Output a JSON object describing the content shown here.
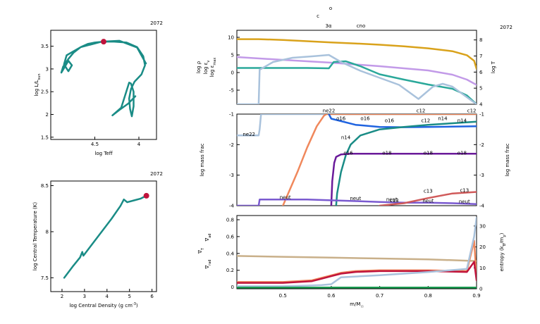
{
  "model_number": "2072",
  "colors": {
    "teal": "#1a8c86",
    "marker": "#c0143c",
    "lilac": "#c29ae8",
    "gold": "#d9a21b",
    "teal2": "#2aa89a",
    "lightblue": "#a9c2dc",
    "orange": "#f0885c",
    "blue": "#1f63e0",
    "purple": "#6a1a9a",
    "violet": "#7a5ad0",
    "red": "#d05a5a",
    "tan": "#c9b08a",
    "green": "#1a9a50"
  },
  "chart_data": [
    {
      "type": "line",
      "id": "hr",
      "title": "2072",
      "xlabel": "log Teff",
      "ylabel": "log L/L",
      "ylabel_sub": "sun",
      "xlim": [
        5.0,
        3.8
      ],
      "ylim": [
        1.45,
        3.85
      ],
      "xticks": [
        4.5,
        4
      ],
      "yticks": [
        1.5,
        2,
        2.5,
        3,
        3.5
      ],
      "x": [
        3.92,
        4.02,
        4.22,
        4.42,
        4.66,
        4.82,
        4.85,
        4.8,
        4.76,
        4.8,
        4.84,
        4.88,
        4.86,
        4.8,
        4.74,
        4.66,
        4.58,
        4.5,
        4.4,
        4.28,
        4.14,
        4.02,
        3.95,
        3.93,
        3.97,
        4.05,
        4.09,
        4.11,
        4.1,
        4.08,
        4.06,
        4.06,
        4.09,
        4.11,
        4.2,
        4.3,
        4.22,
        4.12,
        4.04
      ],
      "y": [
        3.12,
        3.47,
        3.62,
        3.6,
        3.48,
        3.3,
        3.1,
        2.95,
        3.08,
        3.18,
        3.05,
        2.92,
        3.05,
        3.22,
        3.36,
        3.48,
        3.55,
        3.58,
        3.6,
        3.6,
        3.58,
        3.48,
        3.28,
        3.08,
        2.88,
        2.72,
        2.56,
        2.35,
        2.12,
        1.96,
        2.18,
        2.5,
        2.68,
        2.7,
        2.15,
        1.98,
        2.1,
        2.24,
        2.4
      ],
      "marker": {
        "x": 4.4,
        "y": 3.6
      }
    },
    {
      "type": "line",
      "id": "rhot",
      "title": "2072",
      "xlabel": "log Central Density (g cm",
      "xlabel_sup": "-3",
      "xlabel_end": ")",
      "ylabel": "log Central Temperature (K)",
      "xlim": [
        1.5,
        6.2
      ],
      "ylim": [
        7.35,
        8.55
      ],
      "xticks": [
        2,
        3,
        4,
        5,
        6
      ],
      "yticks": [
        7.5,
        8,
        8.5
      ],
      "x": [
        2.1,
        2.5,
        2.8,
        2.9,
        2.95,
        3.2,
        3.7,
        4.2,
        4.6,
        4.75,
        4.9,
        5.2,
        5.5,
        5.75
      ],
      "y": [
        7.5,
        7.63,
        7.72,
        7.78,
        7.74,
        7.82,
        7.98,
        8.14,
        8.28,
        8.35,
        8.32,
        8.34,
        8.36,
        8.39
      ],
      "marker": {
        "x": 5.75,
        "y": 8.39
      }
    },
    {
      "type": "line",
      "id": "profile",
      "title": "2072",
      "xlim": [
        0.405,
        0.9
      ],
      "ylim": [
        -9,
        12
      ],
      "yticks": [
        -5,
        0,
        5,
        10
      ],
      "ylabel_left": [
        {
          "text": "log ρ",
          "color": "lilac"
        },
        {
          "text": "log ε",
          "sub": "ν",
          "color": "teal2"
        },
        {
          "text": "log ε",
          "sub": "max",
          "color": "lightblue"
        }
      ],
      "ylabel_right": "log T",
      "y2lim": [
        4,
        8.6
      ],
      "y2ticks": [
        4,
        5,
        6,
        7,
        8
      ],
      "top_labels": [
        "c",
        "o",
        "3α",
        "cno"
      ],
      "series": [
        {
          "color": "gold",
          "axis": "right",
          "x": [
            0.405,
            0.45,
            0.5,
            0.55,
            0.6,
            0.65,
            0.7,
            0.75,
            0.8,
            0.85,
            0.88,
            0.895,
            0.9
          ],
          "y": [
            8.05,
            8.05,
            8.0,
            7.92,
            7.84,
            7.78,
            7.7,
            7.6,
            7.48,
            7.3,
            7.05,
            6.7,
            6.2
          ]
        },
        {
          "color": "lilac",
          "axis": "left",
          "x": [
            0.405,
            0.5,
            0.6,
            0.7,
            0.8,
            0.85,
            0.88,
            0.9
          ],
          "y": [
            4.4,
            3.6,
            2.8,
            1.8,
            0.6,
            -0.6,
            -2.0,
            -3.5
          ]
        },
        {
          "color": "teal2",
          "axis": "left",
          "x": [
            0.405,
            0.55,
            0.595,
            0.605,
            0.63,
            0.66,
            0.7,
            0.75,
            0.8,
            0.85,
            0.88,
            0.9
          ],
          "y": [
            1.3,
            1.3,
            1.2,
            3.0,
            3.2,
            1.8,
            -0.5,
            -2.0,
            -3.4,
            -4.6,
            -6.5,
            -9
          ]
        },
        {
          "color": "lightblue",
          "axis": "left",
          "x": [
            0.405,
            0.45,
            0.452,
            0.48,
            0.52,
            0.56,
            0.595,
            0.62,
            0.66,
            0.7,
            0.74,
            0.78,
            0.81,
            0.83,
            0.85,
            0.87,
            0.89,
            0.9
          ],
          "y": [
            -9,
            -9,
            0.8,
            3.0,
            4.2,
            4.6,
            5.0,
            3.0,
            0.5,
            -1.5,
            -3.5,
            -7.5,
            -4.0,
            -3.2,
            -4.0,
            -6.0,
            -8.0,
            -9
          ]
        }
      ]
    },
    {
      "type": "line",
      "id": "abund",
      "xlim": [
        0.405,
        0.9
      ],
      "ylim": [
        -4,
        -1
      ],
      "yticks": [
        -4,
        -3,
        -2,
        -1
      ],
      "ylabel": "log mass frac",
      "series": [
        {
          "name": "ne22",
          "color": "lightblue",
          "x": [
            0.405,
            0.45,
            0.452,
            0.455,
            0.9
          ],
          "y": [
            -1.7,
            -1.7,
            -1.5,
            -1.0,
            -1.0
          ]
        },
        {
          "name": "o16",
          "color": "orange",
          "x": [
            0.5,
            0.53,
            0.55,
            0.57,
            0.585,
            0.59,
            0.9
          ],
          "y": [
            -4.0,
            -2.9,
            -2.1,
            -1.4,
            -1.05,
            -1.0,
            -1.0
          ]
        },
        {
          "name": "c12",
          "color": "blue",
          "x": [
            0.595,
            0.6,
            0.65,
            0.7,
            0.75,
            0.8,
            0.85,
            0.9
          ],
          "y": [
            -1.0,
            -1.15,
            -1.35,
            -1.42,
            -1.43,
            -1.42,
            -1.41,
            -1.4
          ]
        },
        {
          "name": "n14",
          "color": "teal",
          "x": [
            0.61,
            0.612,
            0.62,
            0.63,
            0.64,
            0.66,
            0.7,
            0.75,
            0.8,
            0.85,
            0.9
          ],
          "y": [
            -4.0,
            -3.6,
            -2.9,
            -2.35,
            -2.0,
            -1.7,
            -1.5,
            -1.42,
            -1.35,
            -1.3,
            -1.25
          ]
        },
        {
          "name": "o18",
          "color": "purple",
          "x": [
            0.6,
            0.602,
            0.606,
            0.61,
            0.62,
            0.64,
            0.7,
            0.8,
            0.9
          ],
          "y": [
            -4.0,
            -3.2,
            -2.6,
            -2.4,
            -2.32,
            -2.3,
            -2.3,
            -2.3,
            -2.3
          ]
        },
        {
          "name": "neut",
          "color": "violet",
          "x": [
            0.405,
            0.45,
            0.452,
            0.55,
            0.65,
            0.7,
            0.75,
            0.8,
            0.85,
            0.9
          ],
          "y": [
            -4.0,
            -4.0,
            -3.8,
            -3.8,
            -3.85,
            -3.88,
            -3.9,
            -3.9,
            -3.92,
            -3.95
          ]
        },
        {
          "name": "c13",
          "color": "red",
          "x": [
            0.7,
            0.75,
            0.8,
            0.85,
            0.9
          ],
          "y": [
            -4.0,
            -3.92,
            -3.75,
            -3.6,
            -3.55
          ]
        }
      ],
      "labels": [
        {
          "text": "ne22",
          "x": 0.43,
          "y": -1.72,
          "color": "lightblue"
        },
        {
          "text": "ne22",
          "x": 0.595,
          "y": -0.94,
          "color": "lightblue"
        },
        {
          "text": "c12",
          "x": 0.785,
          "y": -0.94,
          "color": "orange"
        },
        {
          "text": "c12",
          "x": 0.89,
          "y": -0.94,
          "color": "orange"
        },
        {
          "text": "o16",
          "x": 0.62,
          "y": -1.2,
          "color": "blue"
        },
        {
          "text": "o16",
          "x": 0.67,
          "y": -1.2,
          "color": "blue"
        },
        {
          "text": "o16",
          "x": 0.72,
          "y": -1.27,
          "color": "blue"
        },
        {
          "text": "c12",
          "x": 0.795,
          "y": -1.27,
          "color": "blue"
        },
        {
          "text": "n14",
          "x": 0.87,
          "y": -1.27,
          "color": "teal"
        },
        {
          "text": "n14",
          "x": 0.83,
          "y": -1.2,
          "color": "teal"
        },
        {
          "text": "n14",
          "x": 0.63,
          "y": -1.82,
          "color": "teal"
        },
        {
          "text": "o16",
          "x": 0.635,
          "y": -2.33,
          "color": "purple"
        },
        {
          "text": "o18",
          "x": 0.715,
          "y": -2.33,
          "color": "purple"
        },
        {
          "text": "o18",
          "x": 0.8,
          "y": -2.33,
          "color": "purple"
        },
        {
          "text": "o18",
          "x": 0.87,
          "y": -2.33,
          "color": "purple"
        },
        {
          "text": "neut",
          "x": 0.505,
          "y": -3.78,
          "color": "violet"
        },
        {
          "text": "neut",
          "x": 0.65,
          "y": -3.82,
          "color": "violet"
        },
        {
          "text": "neut",
          "x": 0.725,
          "y": -3.85,
          "color": "violet"
        },
        {
          "text": "neut",
          "x": 0.8,
          "y": -3.9,
          "color": "violet"
        },
        {
          "text": "neut",
          "x": 0.875,
          "y": -3.92,
          "color": "violet"
        },
        {
          "text": "c13",
          "x": 0.8,
          "y": -3.57,
          "color": "red"
        },
        {
          "text": "c13",
          "x": 0.875,
          "y": -3.55,
          "color": "red"
        },
        {
          "text": "c13",
          "x": 0.73,
          "y": -3.88,
          "color": "red"
        }
      ]
    },
    {
      "type": "line",
      "id": "gradients",
      "xlim": [
        0.405,
        0.9
      ],
      "ylim": [
        -0.02,
        0.85
      ],
      "yticks": [
        0,
        0.2,
        0.4,
        0.6,
        0.8
      ],
      "xticks": [
        0.5,
        0.6,
        0.7,
        0.8,
        0.9
      ],
      "xlabel": "m/M",
      "xlabel_sub": "☉",
      "ylabel_left": [
        {
          "text": "∇",
          "sub": "ad",
          "color": "tan"
        },
        {
          "text": "∇",
          "sub": "T",
          "color": "marker"
        },
        {
          "text": "∇",
          "sub": "rad",
          "color": "orange"
        }
      ],
      "ylabel_right": "entropy (k",
      "ylabel_right_sub": "B",
      "ylabel_right_end": "/m",
      "ylabel_right_sub2": "p",
      "ylabel_right_tail": ")",
      "y2lim": [
        0,
        35
      ],
      "y2ticks": [
        0,
        10,
        20,
        30
      ],
      "series": [
        {
          "color": "tan",
          "axis": "left",
          "x": [
            0.405,
            0.5,
            0.6,
            0.7,
            0.8,
            0.9
          ],
          "y": [
            0.37,
            0.36,
            0.35,
            0.34,
            0.33,
            0.31
          ]
        },
        {
          "color": "orange",
          "axis": "left",
          "x": [
            0.405,
            0.5,
            0.56,
            0.58,
            0.6,
            0.62,
            0.65,
            0.7,
            0.8,
            0.88,
            0.895,
            0.9
          ],
          "y": [
            0.06,
            0.06,
            0.08,
            0.11,
            0.14,
            0.17,
            0.19,
            0.2,
            0.2,
            0.19,
            0.55,
            0.1
          ]
        },
        {
          "color": "marker",
          "axis": "left",
          "x": [
            0.405,
            0.5,
            0.56,
            0.58,
            0.6,
            0.62,
            0.65,
            0.7,
            0.8,
            0.88,
            0.895,
            0.9
          ],
          "y": [
            0.05,
            0.05,
            0.07,
            0.1,
            0.13,
            0.16,
            0.18,
            0.19,
            0.19,
            0.18,
            0.3,
            0.08
          ]
        },
        {
          "color": "lightblue",
          "axis": "right",
          "x": [
            0.405,
            0.5,
            0.55,
            0.58,
            0.6,
            0.62,
            0.7,
            0.8,
            0.88,
            0.895,
            0.9
          ],
          "y": [
            1.2,
            1.2,
            1.5,
            1.8,
            2.2,
            5.5,
            6.5,
            8.0,
            9.5,
            25,
            34
          ]
        },
        {
          "color": "green",
          "axis": "left",
          "x": [
            0.405,
            0.9
          ],
          "y": [
            -0.005,
            -0.005
          ]
        }
      ]
    }
  ]
}
